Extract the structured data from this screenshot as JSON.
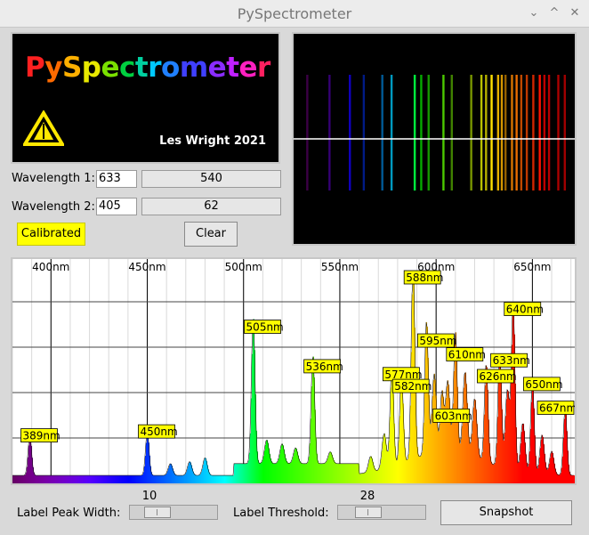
{
  "window": {
    "title": "PySpectrometer",
    "controls": [
      "⌄",
      "^",
      "✕"
    ]
  },
  "logo": {
    "title": "PySpectrometer",
    "credit": "Les Wright 2021"
  },
  "calibration": {
    "wavelength1_label": "Wavelength 1:",
    "wavelength1_value": "633",
    "wavelength1_pixel": "540",
    "wavelength2_label": "Wavelength 2:",
    "wavelength2_value": "405",
    "wavelength2_pixel": "62",
    "status_label": "Calibrated",
    "clear_label": "Clear"
  },
  "colors": {
    "calibrated_bg": "#ffff00",
    "graph_bg": "#ffffff",
    "peak_label_bg": "#ffff00"
  },
  "chart_data": {
    "type": "area",
    "xlabel": "",
    "ylabel": "",
    "xlim": [
      380,
      672
    ],
    "ticks": [
      {
        "nm": 400,
        "label": "400nm"
      },
      {
        "nm": 450,
        "label": "450nm"
      },
      {
        "nm": 500,
        "label": "500nm"
      },
      {
        "nm": 550,
        "label": "550nm"
      },
      {
        "nm": 600,
        "label": "600nm"
      },
      {
        "nm": 650,
        "label": "650nm"
      }
    ],
    "grid": true,
    "peaks": [
      {
        "nm": 389,
        "label": "389nm",
        "intensity": 0.2
      },
      {
        "nm": 450,
        "label": "450nm",
        "intensity": 0.22
      },
      {
        "nm": 505,
        "label": "505nm",
        "intensity": 0.75
      },
      {
        "nm": 536,
        "label": "536nm",
        "intensity": 0.55
      },
      {
        "nm": 577,
        "label": "577nm",
        "intensity": 0.51
      },
      {
        "nm": 582,
        "label": "582nm",
        "intensity": 0.45
      },
      {
        "nm": 588,
        "label": "588nm",
        "intensity": 1.0
      },
      {
        "nm": 595,
        "label": "595nm",
        "intensity": 0.68
      },
      {
        "nm": 603,
        "label": "603nm",
        "intensity": 0.3
      },
      {
        "nm": 610,
        "label": "610nm",
        "intensity": 0.61
      },
      {
        "nm": 626,
        "label": "626nm",
        "intensity": 0.5
      },
      {
        "nm": 633,
        "label": "633nm",
        "intensity": 0.58
      },
      {
        "nm": 640,
        "label": "640nm",
        "intensity": 0.84
      },
      {
        "nm": 650,
        "label": "650nm",
        "intensity": 0.46
      },
      {
        "nm": 667,
        "label": "667nm",
        "intensity": 0.34
      }
    ]
  },
  "controls": {
    "peak_width_label": "Label Peak Width:",
    "peak_width_value": "10",
    "threshold_label": "Label Threshold:",
    "threshold_value": "28",
    "snapshot_label": "Snapshot"
  }
}
